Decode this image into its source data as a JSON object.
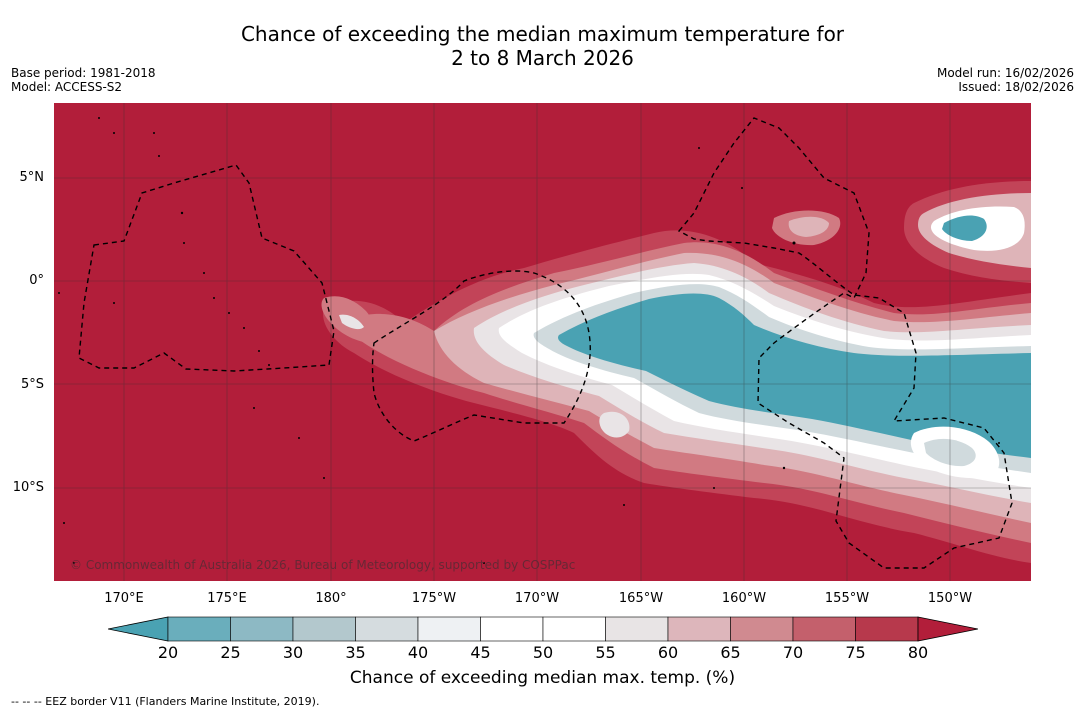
{
  "title": {
    "line1": "Chance of exceeding the median maximum temperature for",
    "line2": "2 to 8 March 2026"
  },
  "meta_left": {
    "base_period": "Base period: 1981-2018",
    "model": "Model: ACCESS-S2"
  },
  "meta_right": {
    "model_run": "Model run: 16/02/2026",
    "issued": "Issued: 18/02/2026"
  },
  "map": {
    "lat_labels": [
      "5°N",
      "0°",
      "5°S",
      "10°S"
    ],
    "lon_labels": [
      "170°E",
      "175°E",
      "180°",
      "175°W",
      "170°W",
      "165°W",
      "160°W",
      "155°W",
      "150°W"
    ],
    "copyright": "© Commonwealth of Australia 2026, Bureau of Meteorology, supported by COSPPac",
    "colors": {
      "high80": "#b21e3a",
      "p75": "#c24458",
      "p70": "#d17a82",
      "p65": "#deb4b8",
      "p60": "#e9e4e6",
      "neutral": "#ffffff",
      "p40": "#d0dadd",
      "p35": "#a9c6cc",
      "p30": "#85b6c1",
      "low20": "#4aa2b3"
    }
  },
  "colorbar": {
    "ticks": [
      "20",
      "25",
      "30",
      "35",
      "40",
      "45",
      "50",
      "55",
      "60",
      "65",
      "70",
      "75",
      "80"
    ],
    "label": "Chance of exceeding median max. temp. (%)",
    "colors": [
      "#4aa2b3",
      "#6aaebc",
      "#8db9c4",
      "#b3c8cd",
      "#d5dcdf",
      "#eef1f3",
      "#ffffff",
      "#ffffff",
      "#e8e4e5",
      "#ddb6bb",
      "#d08a90",
      "#c4606c",
      "#b7394c",
      "#b21e3a"
    ]
  },
  "footnote": "--  --  -- EEZ border V11 (Flanders Marine Institute, 2019)."
}
